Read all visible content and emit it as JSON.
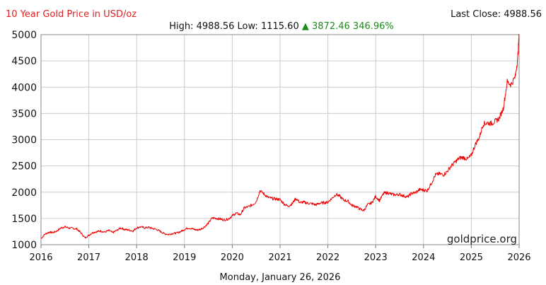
{
  "chart_data": {
    "type": "line",
    "title": "10 Year Gold Price in USD/oz",
    "stats": {
      "high_label": "High:",
      "high": "4988.56",
      "low_label": "Low:",
      "low": "1115.60",
      "change_arrow": "▲",
      "change": "3872.46",
      "change_pct": "346.96%"
    },
    "last_close_label": "Last Close:",
    "last_close": "4988.56",
    "watermark": "goldprice.org",
    "date_caption": "Monday, January 26, 2026",
    "xlabel": "",
    "ylabel": "",
    "xlim": [
      2016.0,
      2026.0
    ],
    "ylim": [
      1000,
      5000
    ],
    "y_ticks": [
      "1000",
      "1500",
      "2000",
      "2500",
      "3000",
      "3500",
      "4000",
      "4500",
      "5000"
    ],
    "x_ticks": [
      "2016",
      "2017",
      "2018",
      "2019",
      "2020",
      "2021",
      "2022",
      "2023",
      "2024",
      "2025",
      "2026"
    ],
    "grid": true,
    "colors": {
      "line": "#ee0000",
      "title": "#dd2222",
      "up": "#1a8a1a",
      "grid": "#cccccc"
    },
    "series": [
      {
        "x": [
          2016.0,
          2016.08,
          2016.17,
          2016.25,
          2016.33,
          2016.42,
          2016.5,
          2016.58,
          2016.67,
          2016.75,
          2016.83,
          2016.92,
          2017.0,
          2017.08,
          2017.17,
          2017.25,
          2017.33,
          2017.42,
          2017.5,
          2017.58,
          2017.67,
          2017.75,
          2017.83,
          2017.92,
          2018.0,
          2018.08,
          2018.17,
          2018.25,
          2018.33,
          2018.42,
          2018.5,
          2018.58,
          2018.67,
          2018.75,
          2018.83,
          2018.92,
          2019.0,
          2019.08,
          2019.17,
          2019.25,
          2019.33,
          2019.42,
          2019.5,
          2019.58,
          2019.67,
          2019.75,
          2019.83,
          2019.92,
          2020.0,
          2020.08,
          2020.17,
          2020.25,
          2020.33,
          2020.42,
          2020.5,
          2020.58,
          2020.67,
          2020.75,
          2020.83,
          2020.92,
          2021.0,
          2021.08,
          2021.17,
          2021.25,
          2021.33,
          2021.42,
          2021.5,
          2021.58,
          2021.67,
          2021.75,
          2021.83,
          2021.92,
          2022.0,
          2022.08,
          2022.17,
          2022.25,
          2022.33,
          2022.42,
          2022.5,
          2022.58,
          2022.67,
          2022.75,
          2022.83,
          2022.92,
          2023.0,
          2023.08,
          2023.17,
          2023.25,
          2023.33,
          2023.42,
          2023.5,
          2023.58,
          2023.67,
          2023.75,
          2023.83,
          2023.92,
          2024.0,
          2024.08,
          2024.17,
          2024.25,
          2024.33,
          2024.42,
          2024.5,
          2024.58,
          2024.67,
          2024.75,
          2024.83,
          2024.92,
          2025.0,
          2025.08,
          2025.17,
          2025.25,
          2025.33,
          2025.42,
          2025.5,
          2025.58,
          2025.67,
          2025.75,
          2025.83,
          2025.92,
          2025.97,
          2026.0
        ],
        "y": [
          1115.6,
          1200,
          1240,
          1230,
          1260,
          1320,
          1340,
          1320,
          1310,
          1300,
          1230,
          1130,
          1180,
          1230,
          1250,
          1260,
          1240,
          1270,
          1230,
          1270,
          1320,
          1290,
          1280,
          1260,
          1320,
          1340,
          1320,
          1330,
          1310,
          1290,
          1250,
          1210,
          1195,
          1215,
          1220,
          1250,
          1290,
          1320,
          1300,
          1280,
          1290,
          1340,
          1410,
          1510,
          1500,
          1490,
          1470,
          1490,
          1550,
          1600,
          1570,
          1700,
          1720,
          1760,
          1820,
          2030,
          1960,
          1900,
          1880,
          1870,
          1860,
          1780,
          1730,
          1780,
          1880,
          1800,
          1810,
          1790,
          1780,
          1760,
          1790,
          1800,
          1810,
          1880,
          1960,
          1920,
          1850,
          1830,
          1750,
          1730,
          1680,
          1650,
          1760,
          1800,
          1920,
          1840,
          1980,
          1990,
          1960,
          1950,
          1960,
          1930,
          1910,
          1980,
          1990,
          2050,
          2040,
          2030,
          2180,
          2330,
          2350,
          2330,
          2400,
          2500,
          2580,
          2650,
          2660,
          2630,
          2700,
          2900,
          3050,
          3300,
          3320,
          3310,
          3350,
          3400,
          3600,
          4100,
          4050,
          4200,
          4550,
          4988.56
        ]
      }
    ]
  }
}
